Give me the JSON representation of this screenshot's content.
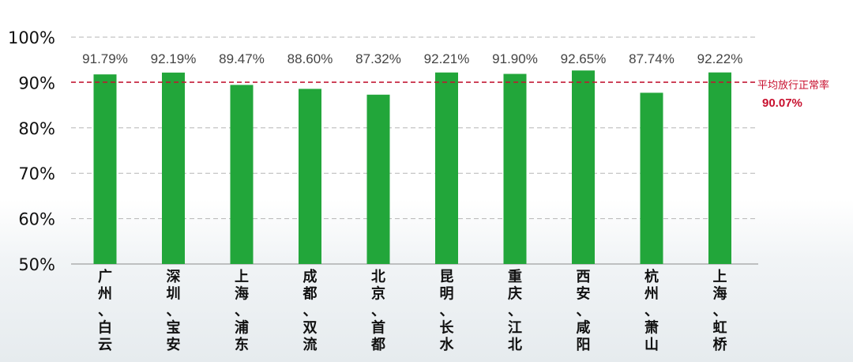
{
  "chart_data": {
    "type": "bar",
    "categories": [
      "广州、白云",
      "深圳、宝安",
      "上海、浦东",
      "成都、双流",
      "北京、首都",
      "昆明、长水",
      "重庆、江北",
      "西安、咸阳",
      "杭州、萧山",
      "上海、虹桥"
    ],
    "category_chars": [
      [
        "广",
        "州",
        "、",
        "白",
        "云"
      ],
      [
        "深",
        "圳",
        "、",
        "宝",
        "安"
      ],
      [
        "上",
        "海",
        "、",
        "浦",
        "东"
      ],
      [
        "成",
        "都",
        "、",
        "双",
        "流"
      ],
      [
        "北",
        "京",
        "、",
        "首",
        "都"
      ],
      [
        "昆",
        "明",
        "、",
        "长",
        "水"
      ],
      [
        "重",
        "庆",
        "、",
        "江",
        "北"
      ],
      [
        "西",
        "安",
        "、",
        "咸",
        "阳"
      ],
      [
        "杭",
        "州",
        "、",
        "萧",
        "山"
      ],
      [
        "上",
        "海",
        "、",
        "虹",
        "桥"
      ]
    ],
    "values": [
      91.79,
      92.19,
      89.47,
      88.6,
      87.32,
      92.21,
      91.9,
      92.65,
      87.74,
      92.22
    ],
    "value_labels": [
      "91.79%",
      "92.19%",
      "89.47%",
      "88.60%",
      "87.32%",
      "92.21%",
      "91.90%",
      "92.65%",
      "87.74%",
      "92.22%"
    ],
    "ylim": [
      50,
      100
    ],
    "yticks": [
      50,
      60,
      70,
      80,
      90,
      100
    ],
    "ytick_labels": [
      "50%",
      "60%",
      "70%",
      "80%",
      "90%",
      "100%"
    ],
    "grid": true,
    "bar_color": "#22a63a",
    "reference_line": {
      "value": 90.07,
      "label": "平均放行正常率",
      "value_label": "90.07%",
      "color": "#c8102e"
    },
    "title": "",
    "xlabel": "",
    "ylabel": ""
  }
}
